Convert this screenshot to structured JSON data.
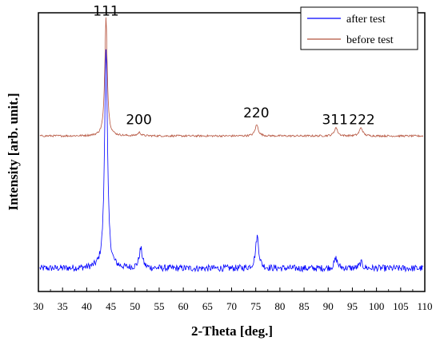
{
  "chart_data": {
    "type": "line",
    "title": "",
    "xlabel": "2-Theta [deg.]",
    "ylabel": "Intensity [arb. unit.]",
    "xlim": [
      30,
      110
    ],
    "xticks": [
      "30",
      "35",
      "40",
      "45",
      "50",
      "55",
      "60",
      "65",
      "70",
      "75",
      "80",
      "85",
      "90",
      "95",
      "100",
      "105",
      "110"
    ],
    "ylim": [
      0,
      1
    ],
    "yticks_visible": false,
    "grid": false,
    "legend_position": "top-right",
    "series": [
      {
        "name": "after test",
        "color": "#0000ff",
        "baseline": 0.083,
        "noise": 0.012,
        "peaks": [
          {
            "x": 44.0,
            "height": 0.8,
            "width": 0.35
          },
          {
            "x": 51.2,
            "height": 0.07,
            "width": 0.4
          },
          {
            "x": 75.3,
            "height": 0.115,
            "width": 0.4
          },
          {
            "x": 91.6,
            "height": 0.035,
            "width": 0.4
          },
          {
            "x": 96.8,
            "height": 0.02,
            "width": 0.4
          }
        ]
      },
      {
        "name": "before test",
        "color": "#b5533d",
        "baseline": 0.558,
        "noise": 0.0035,
        "peaks": [
          {
            "x": 44.0,
            "height": 0.427,
            "width": 0.3
          },
          {
            "x": 50.9,
            "height": 0.012,
            "width": 0.4
          },
          {
            "x": 75.2,
            "height": 0.04,
            "width": 0.4
          },
          {
            "x": 91.6,
            "height": 0.03,
            "width": 0.4
          },
          {
            "x": 96.8,
            "height": 0.03,
            "width": 0.4
          }
        ]
      }
    ],
    "annotations": [
      {
        "text": "111",
        "x": 44.0,
        "y": 0.99
      },
      {
        "text": "200",
        "x": 50.8,
        "y": 0.6
      },
      {
        "text": "220",
        "x": 75.1,
        "y": 0.625
      },
      {
        "text": "311",
        "x": 91.4,
        "y": 0.6
      },
      {
        "text": "222",
        "x": 97.0,
        "y": 0.6
      }
    ]
  }
}
